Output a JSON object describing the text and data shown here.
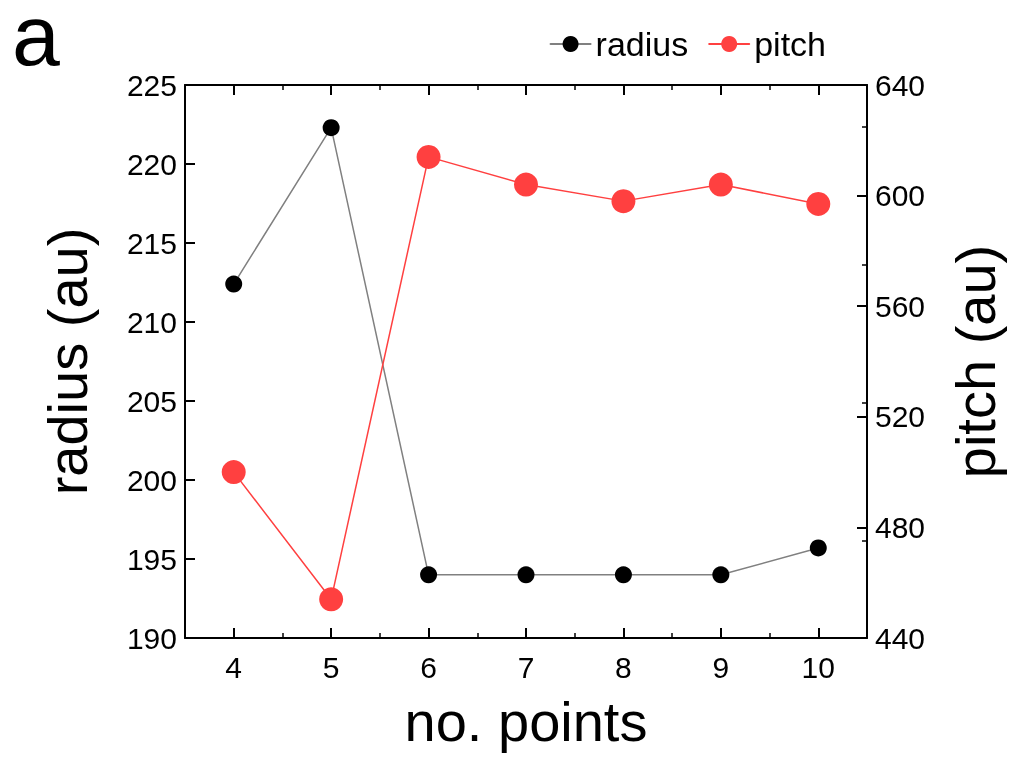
{
  "chart_data": {
    "type": "line",
    "xlabel": "no. points",
    "ylabel": "radius (au)",
    "y2label": "pitch (au)",
    "annotations": [
      "a"
    ],
    "x": [
      4,
      5,
      6,
      7,
      8,
      9,
      10
    ],
    "series": [
      {
        "name": "radius",
        "color": "#000000",
        "values": [
          212.4,
          222.3,
          194.0,
          194.0,
          194.0,
          194.0,
          195.7
        ]
      },
      {
        "name": "pitch",
        "color": "#ff4040",
        "axis": "y2",
        "values": [
          500,
          454,
          614,
          604,
          598,
          604,
          597
        ]
      }
    ],
    "xlim": [
      3.5,
      10.5
    ],
    "xticks": [
      4,
      5,
      6,
      7,
      8,
      9,
      10
    ],
    "ylim": [
      190,
      225
    ],
    "yticks": [
      190,
      195,
      200,
      205,
      210,
      215,
      220,
      225
    ],
    "y2lim": [
      440,
      640
    ],
    "y2ticks": [
      440,
      480,
      520,
      560,
      600,
      640
    ],
    "grid": false,
    "legend": "top right",
    "marker": "circle",
    "line_style": "solid"
  }
}
